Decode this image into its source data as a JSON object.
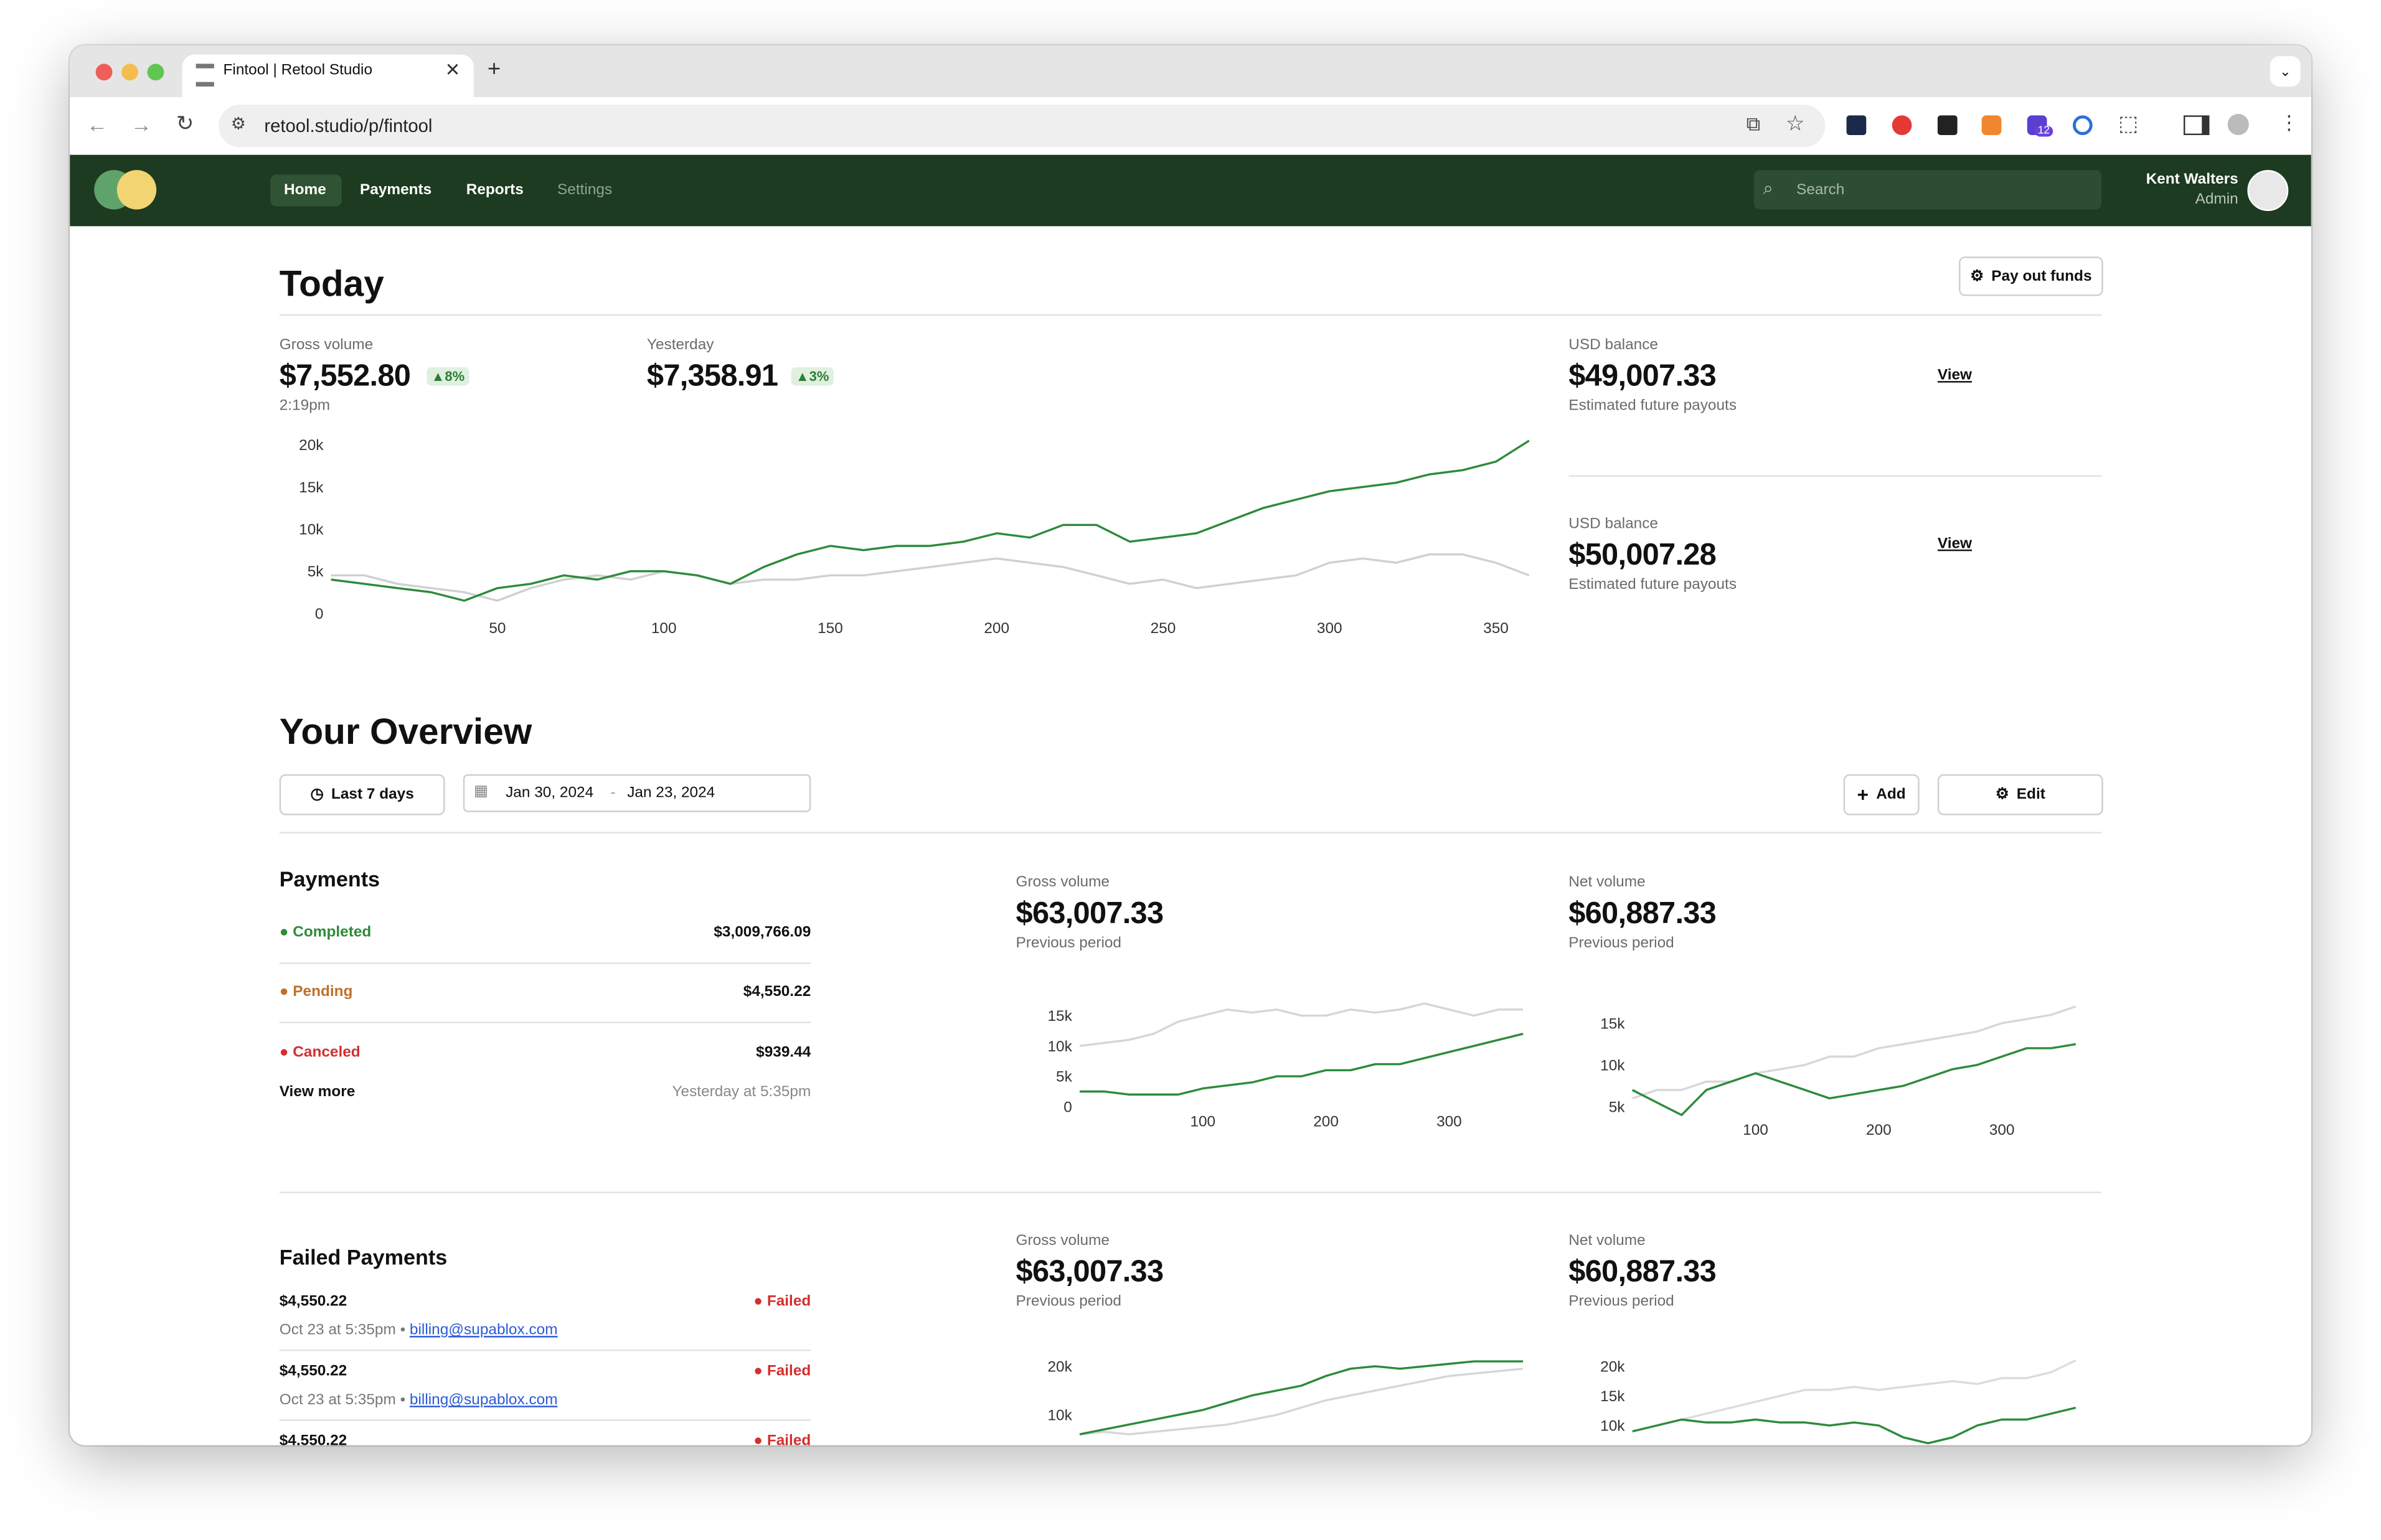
{
  "browser": {
    "tab_title": "Fintool | Retool Studio",
    "url": "retool.studio/p/fintool"
  },
  "nav": {
    "items": [
      "Home",
      "Payments",
      "Reports",
      "Settings"
    ],
    "search_placeholder": "Search",
    "user_name": "Kent Walters",
    "user_role": "Admin",
    "extension_badge": "12"
  },
  "today": {
    "title": "Today",
    "button": "Pay out funds",
    "gross_label": "Gross volume",
    "gross_value": "$7,552.80",
    "gross_change": "8%",
    "gross_time": "2:19pm",
    "yesterday_label": "Yesterday",
    "yesterday_value": "$7,358.91",
    "yesterday_change": "3%",
    "balances": [
      {
        "label": "USD balance",
        "value": "$49,007.33",
        "sub": "Estimated future payouts",
        "link": "View"
      },
      {
        "label": "USD balance",
        "value": "$50,007.28",
        "sub": "Estimated future payouts",
        "link": "View"
      }
    ],
    "chart": {
      "type": "line",
      "xlim": [
        0,
        365
      ],
      "ylim": [
        0,
        21000
      ],
      "xticks": [
        50,
        100,
        150,
        200,
        250,
        300,
        350
      ],
      "yticks": [
        0,
        {
          "value": 5000,
          "label": "5k"
        },
        {
          "value": 10000,
          "label": "10k"
        },
        {
          "value": 15000,
          "label": "15k"
        },
        {
          "value": 20000,
          "label": "20k"
        }
      ],
      "x": [
        0,
        10,
        20,
        30,
        40,
        50,
        60,
        70,
        80,
        90,
        100,
        110,
        120,
        130,
        140,
        150,
        160,
        170,
        180,
        190,
        200,
        210,
        220,
        230,
        240,
        250,
        260,
        270,
        280,
        290,
        300,
        310,
        320,
        330,
        340,
        350,
        360
      ],
      "series": [
        {
          "color": "#d0d0d0",
          "values": [
            4500,
            4500,
            3500,
            3000,
            2500,
            1500,
            3000,
            4000,
            4500,
            4000,
            5000,
            4500,
            3500,
            4000,
            4000,
            4500,
            4500,
            5000,
            5500,
            6000,
            6500,
            6000,
            5500,
            4500,
            3500,
            4000,
            3000,
            3500,
            4000,
            4500,
            6000,
            6500,
            6000,
            7000,
            7000,
            6000,
            4500
          ]
        },
        {
          "color": "#2e8b3a",
          "values": [
            4000,
            3500,
            3000,
            2500,
            1500,
            3000,
            3500,
            4500,
            4000,
            5000,
            5000,
            4500,
            3500,
            5500,
            7000,
            8000,
            7500,
            8000,
            8000,
            8500,
            9500,
            9000,
            10500,
            10500,
            8500,
            9000,
            9500,
            11000,
            12500,
            13500,
            14500,
            15000,
            15500,
            16500,
            17000,
            18000,
            20500
          ]
        }
      ]
    }
  },
  "overview": {
    "title": "Your Overview",
    "range_button": "Last 7 days",
    "date_from": "Jan 30, 2024",
    "date_to": "Jan 23, 2024",
    "add": "Add",
    "edit": "Edit"
  },
  "payments": {
    "title": "Payments",
    "rows": [
      {
        "status": "Completed",
        "amount": "$3,009,766.09"
      },
      {
        "status": "Pending",
        "amount": "$4,550.22"
      },
      {
        "status": "Canceled",
        "amount": "$939.44"
      }
    ],
    "view_more": "View more",
    "updated": "Yesterday at 5:35pm"
  },
  "payments_charts": [
    {
      "label": "Gross volume",
      "value": "$63,007.33",
      "sub": "Previous period",
      "chart": {
        "type": "line",
        "xlim": [
          0,
          360
        ],
        "ylim": [
          0,
          17000
        ],
        "xticks": [
          100,
          200,
          300
        ],
        "yticks": [
          0,
          {
            "value": 5000,
            "label": "5k"
          },
          {
            "value": 10000,
            "label": "10k"
          },
          {
            "value": 15000,
            "label": "15k"
          }
        ],
        "x": [
          0,
          20,
          40,
          60,
          80,
          100,
          120,
          140,
          160,
          180,
          200,
          220,
          240,
          260,
          280,
          300,
          320,
          340,
          360
        ],
        "series": [
          {
            "color": "#d6d6d6",
            "values": [
              10000,
              10500,
              11000,
              12000,
              14000,
              15000,
              16000,
              15500,
              16000,
              15000,
              15000,
              16000,
              15500,
              16000,
              17000,
              16000,
              15000,
              16000,
              16000
            ]
          },
          {
            "color": "#2e8b3a",
            "values": [
              2500,
              2500,
              2000,
              2000,
              2000,
              3000,
              3500,
              4000,
              5000,
              5000,
              6000,
              6000,
              7000,
              7000,
              8000,
              9000,
              10000,
              11000,
              12000
            ]
          }
        ]
      }
    },
    {
      "label": "Net volume",
      "value": "$60,887.33",
      "sub": "Previous period",
      "chart": {
        "type": "line",
        "xlim": [
          0,
          360
        ],
        "ylim": [
          4000,
          18000
        ],
        "xticks": [
          100,
          200,
          300
        ],
        "yticks": [
          {
            "value": 5000,
            "label": "5k"
          },
          {
            "value": 10000,
            "label": "10k"
          },
          {
            "value": 15000,
            "label": "15k"
          }
        ],
        "x": [
          0,
          20,
          40,
          60,
          80,
          100,
          120,
          140,
          160,
          180,
          200,
          220,
          240,
          260,
          280,
          300,
          320,
          340,
          360
        ],
        "series": [
          {
            "color": "#dcd4dc",
            "values": [
              6000,
              7000,
              7000,
              8000,
              8000,
              9000,
              9500,
              10000,
              11000,
              11000,
              12000,
              12500,
              13000,
              13500,
              14000,
              15000,
              15500,
              16000,
              17000
            ]
          },
          {
            "color": "#2e8b3a",
            "values": [
              7000,
              5500,
              4000,
              7000,
              8000,
              9000,
              8000,
              7000,
              6000,
              6500,
              7000,
              7500,
              8500,
              9500,
              10000,
              11000,
              12000,
              12000,
              12500
            ]
          }
        ]
      }
    }
  ],
  "failed": {
    "title": "Failed Payments",
    "items": [
      {
        "amount": "$4,550.22",
        "meta": "Oct 23 at 5:35pm",
        "email": "billing@supablox.com",
        "status": "Failed"
      },
      {
        "amount": "$4,550.22",
        "meta": "Oct 23 at 5:35pm",
        "email": "billing@supablox.com",
        "status": "Failed"
      },
      {
        "amount": "$4,550.22",
        "status": "Failed"
      }
    ]
  },
  "failed_charts": [
    {
      "label": "Gross volume",
      "value": "$63,007.33",
      "sub": "Previous period",
      "chart": {
        "type": "line",
        "xlim": [
          0,
          360
        ],
        "ylim": [
          6000,
          22000
        ],
        "yticks": [
          {
            "value": 10000,
            "label": "10k"
          },
          {
            "value": 20000,
            "label": "20k"
          }
        ],
        "x": [
          0,
          20,
          40,
          60,
          80,
          100,
          120,
          140,
          160,
          180,
          200,
          220,
          240,
          260,
          280,
          300,
          320,
          340,
          360
        ],
        "series": [
          {
            "color": "#d6d6d6",
            "values": [
              6000,
              6500,
              6000,
              6500,
              7000,
              7500,
              8000,
              9000,
              10000,
              11500,
              13000,
              14000,
              15000,
              16000,
              17000,
              18000,
              18500,
              19000,
              19500
            ]
          },
          {
            "color": "#2e8b3a",
            "values": [
              6000,
              7000,
              8000,
              9000,
              10000,
              11000,
              12500,
              14000,
              15000,
              16000,
              18000,
              19500,
              20000,
              19500,
              20000,
              20500,
              21000,
              21000,
              21000
            ]
          }
        ]
      }
    },
    {
      "label": "Net volume",
      "value": "$60,887.33",
      "sub": "Previous period",
      "chart": {
        "type": "line",
        "xlim": [
          0,
          360
        ],
        "ylim": [
          8000,
          22000
        ],
        "yticks": [
          {
            "value": 10000,
            "label": "10k"
          },
          {
            "value": 15000,
            "label": "15k"
          },
          {
            "value": 20000,
            "label": "20k"
          }
        ],
        "x": [
          0,
          20,
          40,
          60,
          80,
          100,
          120,
          140,
          160,
          180,
          200,
          220,
          240,
          260,
          280,
          300,
          320,
          340,
          360
        ],
        "series": [
          {
            "color": "#dcdcdc",
            "values": [
              9000,
              10000,
              11000,
              12000,
              13000,
              14000,
              15000,
              16000,
              16000,
              16500,
              16000,
              16500,
              17000,
              17500,
              17000,
              18000,
              18000,
              19000,
              21000
            ]
          },
          {
            "color": "#2e8b3a",
            "values": [
              9000,
              10000,
              11000,
              10500,
              10500,
              11000,
              10500,
              10500,
              10000,
              10500,
              10000,
              8000,
              7000,
              8000,
              10000,
              11000,
              11000,
              12000,
              13000
            ]
          }
        ]
      }
    }
  ]
}
